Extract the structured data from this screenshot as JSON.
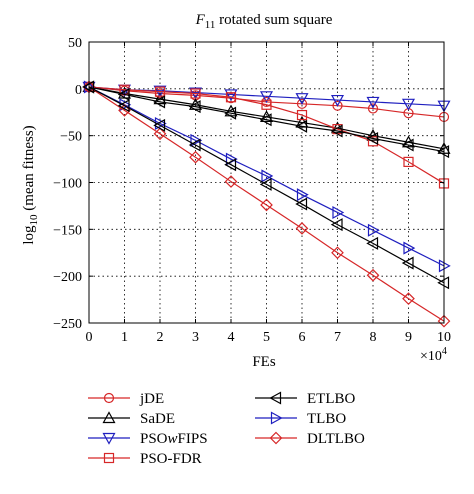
{
  "chart_data": {
    "type": "line",
    "title_symbol": "F",
    "title_subscript": "11",
    "title_rest": " rotated sum square",
    "xlabel": "FEs",
    "x_multiplier_base": "×10",
    "x_multiplier_exp": "4",
    "ylabel_prefix": "log",
    "ylabel_subscript": "10",
    "ylabel_rest": " (mean fitness)",
    "xlim": [
      0,
      10
    ],
    "ylim": [
      -250,
      50
    ],
    "xticks": [
      0,
      1,
      2,
      3,
      4,
      5,
      6,
      7,
      8,
      9,
      10
    ],
    "yticks": [
      50,
      0,
      -50,
      -100,
      -150,
      -200,
      -250
    ],
    "grid": true,
    "x": [
      0,
      1,
      2,
      3,
      4,
      5,
      6,
      7,
      8,
      9,
      10
    ],
    "series": [
      {
        "name": "jDE",
        "color": "#d62728",
        "marker": "circle",
        "values": [
          2,
          -2,
          -5,
          -7,
          -10,
          -14,
          -16,
          -18,
          -21,
          -26,
          -30
        ]
      },
      {
        "name": "SaDE",
        "color": "#000000",
        "marker": "triangle-up",
        "values": [
          2,
          -5,
          -11,
          -17,
          -24,
          -30,
          -36,
          -42,
          -50,
          -57,
          -64
        ]
      },
      {
        "name": "PSOwFIPS",
        "color": "#1f1fbf",
        "marker": "triangle-down",
        "values": [
          2,
          -1,
          -2,
          -4,
          -6,
          -8,
          -10,
          -12,
          -14,
          -16,
          -18
        ]
      },
      {
        "name": "PSO-FDR",
        "color": "#d62728",
        "marker": "square",
        "values": [
          2,
          -1,
          -3,
          -5,
          -9,
          -17,
          -28,
          -43,
          -56,
          -78,
          -101
        ]
      },
      {
        "name": "ETLBO",
        "color": "#000000",
        "marker": "triangle-left",
        "values": [
          2,
          -6,
          -14,
          -19,
          -26,
          -33,
          -40,
          -45,
          -53,
          -60,
          -67
        ]
      },
      {
        "name": "TLBO",
        "color": "#1f1fbf",
        "marker": "triangle-right",
        "values": [
          2,
          -17,
          -37,
          -55,
          -75,
          -93,
          -113,
          -132,
          -151,
          -170,
          -189
        ]
      },
      {
        "name": "DLTLBO",
        "color": "#d62728",
        "marker": "diamond",
        "values": [
          2,
          -23,
          -48,
          -73,
          -99,
          -124,
          -149,
          -175,
          -199,
          -224,
          -248
        ]
      }
    ],
    "etlbo_extra": {
      "x": [
        1,
        2,
        3,
        4,
        5,
        6,
        7,
        8,
        9,
        10
      ],
      "values": [
        -18,
        -39,
        -60,
        -81,
        -102,
        -123,
        -145,
        -165,
        -186,
        -207
      ]
    },
    "legend": {
      "placement": "bottom",
      "columns": [
        [
          "jDE",
          "SaDE",
          "PSOwFIPS",
          "PSO-FDR"
        ],
        [
          "ETLBO",
          "TLBO",
          "DLTLBO"
        ]
      ]
    }
  }
}
